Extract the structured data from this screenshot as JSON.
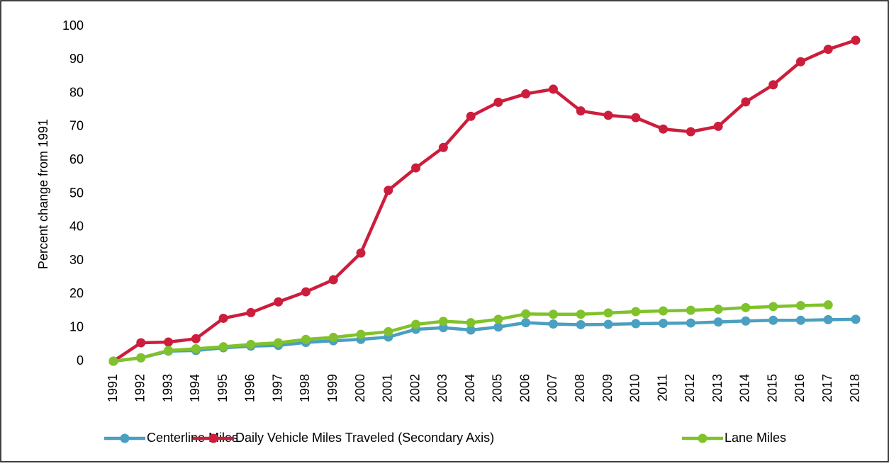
{
  "chart_data": {
    "type": "line",
    "y_label": "Percent change from 1991",
    "categories": [
      "1991",
      "1992",
      "1993",
      "1994",
      "1995",
      "1996",
      "1997",
      "1998",
      "1999",
      "2000",
      "2001",
      "2002",
      "2003",
      "2004",
      "2005",
      "2006",
      "2007",
      "2008",
      "2009",
      "2010",
      "2011",
      "2012",
      "2013",
      "2014",
      "2015",
      "2016",
      "2017",
      "2018"
    ],
    "series": [
      {
        "name": "Centerline Miles",
        "color": "#4b9fc0",
        "values": [
          0,
          1,
          3,
          3.2,
          4,
          4.5,
          4.7,
          5.6,
          6.1,
          6.5,
          7.2,
          9.5,
          10,
          9.3,
          10.2,
          11.5,
          11.1,
          10.9,
          11,
          11.2,
          11.3,
          11.4,
          11.7,
          12,
          12.2,
          12.2,
          12.4,
          12.5
        ]
      },
      {
        "name": "Daily Vehicle Miles Traveled (Secondary Axis)",
        "color": "#cc1e3c",
        "values": [
          0,
          5.5,
          5.7,
          6.7,
          12.8,
          14.5,
          17.7,
          20.7,
          24.3,
          32.3,
          51,
          57.7,
          63.8,
          73.1,
          77.3,
          79.8,
          81.2,
          74.7,
          73.4,
          72.7,
          69.3,
          68.5,
          70.1,
          77.4,
          82.5,
          89.4,
          93.1,
          95.8
        ]
      },
      {
        "name": "Lane Miles",
        "color": "#80c22b",
        "values": [
          0,
          1,
          3.2,
          3.7,
          4.3,
          5,
          5.5,
          6.5,
          7.1,
          8,
          8.8,
          11,
          11.9,
          11.5,
          12.5,
          14.1,
          14,
          14,
          14.4,
          14.8,
          15,
          15.2,
          15.5,
          16,
          16.3,
          16.6,
          16.8,
          null
        ]
      }
    ],
    "ylim": [
      0,
      100
    ],
    "yticks": [
      0,
      10,
      20,
      30,
      40,
      50,
      60,
      70,
      80,
      90,
      100
    ],
    "grid": false,
    "legend": "bottom"
  }
}
